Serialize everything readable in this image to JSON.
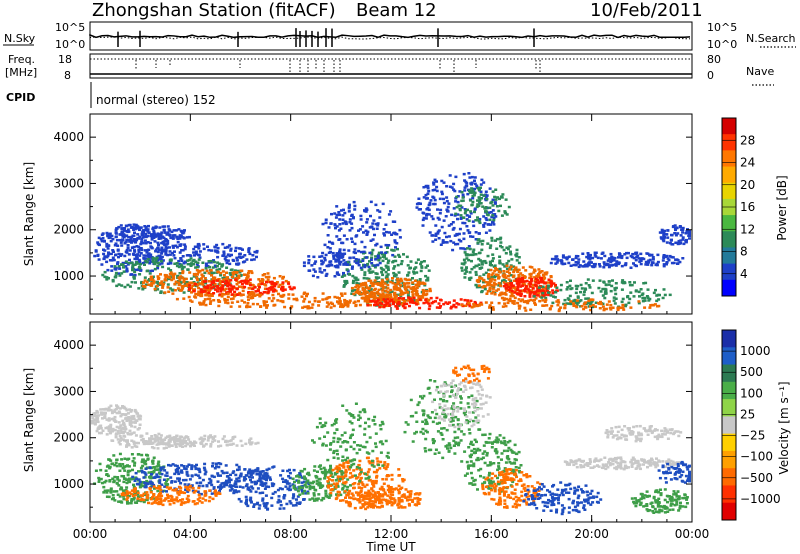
{
  "header": {
    "title": "Zhongshan Station (fitACF)",
    "beam": "Beam 12",
    "date": "10/Feb/2011"
  },
  "aux": {
    "nsky_label": "N.Sky",
    "nsearch_label": "N.Search",
    "freq_label": "Freq.",
    "freq_unit": "[MHz]",
    "nave_label": "Nave",
    "cpid_label": "CPID",
    "cpid_value": "normal (stereo) 152",
    "nsky_ticks": [
      "10^5",
      "10^0"
    ],
    "nsearch_ticks": [
      "10^5",
      "10^0"
    ],
    "freq_ticks": [
      "18",
      "8"
    ],
    "nave_ticks": [
      "80",
      "0"
    ]
  },
  "chart_data": [
    {
      "type": "heatmap",
      "title": "Power",
      "ylabel": "Slant Range [km]",
      "ylim": [
        180,
        4500
      ],
      "yticks": [
        "4000",
        "3000",
        "2000",
        "1000"
      ],
      "colorbar_label": "Power [dB]",
      "colorbar_ticks": [
        "28",
        "24",
        "20",
        "16",
        "12",
        "8",
        "4"
      ],
      "colorbar_colors": [
        "#d40000",
        "#ff3300",
        "#ff7700",
        "#ffaa00",
        "#e8d400",
        "#a8d838",
        "#4ab840",
        "#2c8a58",
        "#227a9a",
        "#1e40c8",
        "#0000ff"
      ],
      "colors": {
        "weak": "#1e40c8",
        "mid": "#2c8a58",
        "strong": "#f06a00",
        "peak": "#ff1a00"
      }
    },
    {
      "type": "heatmap",
      "title": "Velocity",
      "ylabel": "Slant Range [km]",
      "xlabel": "Time UT",
      "ylim": [
        180,
        4500
      ],
      "yticks": [
        "4000",
        "3000",
        "2000",
        "1000"
      ],
      "xticks": [
        "00:00",
        "04:00",
        "08:00",
        "12:00",
        "16:00",
        "20:00",
        "00:00"
      ],
      "colorbar_label": "Velocity [m s⁻¹]",
      "colorbar_ticks": [
        "1000",
        "500",
        "100",
        "25",
        "−25",
        "−100",
        "−500",
        "−1000"
      ],
      "colorbar_colors": [
        "#1a2ea8",
        "#1e5ec8",
        "#2c7a52",
        "#4aae48",
        "#8fd448",
        "#c8c8c8",
        "#ffd000",
        "#ffa000",
        "#ff6a00",
        "#ff3000",
        "#e00000"
      ],
      "colors": {
        "toward": "#1e4ec0",
        "green": "#3e9e48",
        "grey": "#c8c8c8",
        "away": "#ff7000"
      }
    }
  ]
}
